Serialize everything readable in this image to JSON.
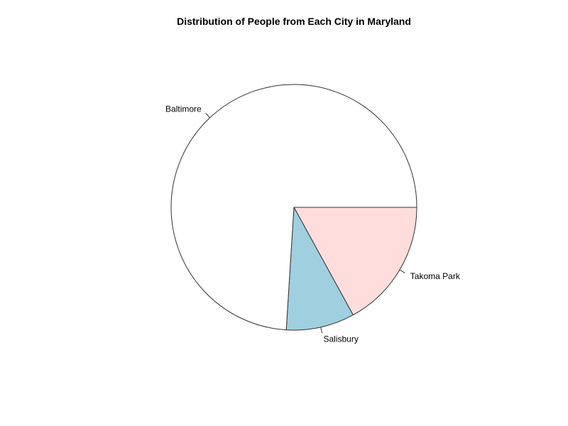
{
  "chart_data": {
    "type": "pie",
    "title": "Distribution of People from Each City in Maryland",
    "start_angle_deg": 0,
    "direction": "clockwise",
    "slices": [
      {
        "label": "Takoma Park",
        "value": 17,
        "color": "#FFDDDD"
      },
      {
        "label": "Salisbury",
        "value": 9,
        "color": "#A0D0E0"
      },
      {
        "label": "Baltimore",
        "value": 74,
        "color": "#FFFFFF"
      }
    ],
    "outline_color": "#333333"
  }
}
